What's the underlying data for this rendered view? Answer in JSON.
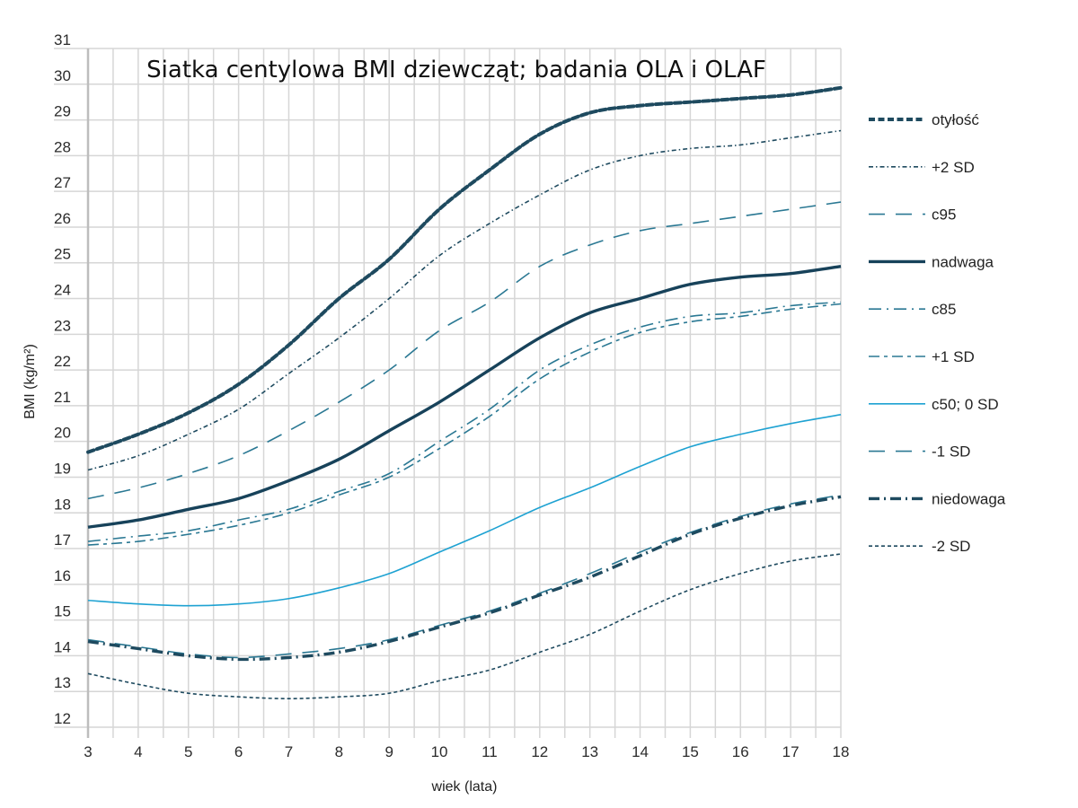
{
  "chart_data": {
    "type": "line",
    "title": "Siatka centylowa BMI dziewcząt; badania OLA i OLAF",
    "xlabel": "wiek (lata)",
    "ylabel": "BMI (kg/m²)",
    "xlim": [
      3,
      18
    ],
    "ylim": [
      12,
      31
    ],
    "grid": true,
    "legend_position": "right",
    "x": [
      3,
      4,
      5,
      6,
      7,
      8,
      9,
      10,
      11,
      12,
      13,
      14,
      15,
      16,
      17,
      18
    ],
    "x_ticks": [
      "3",
      "4",
      "5",
      "6",
      "7",
      "8",
      "9",
      "10",
      "11",
      "12",
      "13",
      "14",
      "15",
      "16",
      "17",
      "18"
    ],
    "y_ticks": [
      "12",
      "13",
      "14",
      "15",
      "16",
      "17",
      "18",
      "19",
      "20",
      "21",
      "22",
      "23",
      "24",
      "25",
      "26",
      "27",
      "28",
      "29",
      "30",
      "31"
    ],
    "series": [
      {
        "name": "otyłość",
        "style": "dashed-thick",
        "color": "#1e4a5f",
        "values": [
          19.7,
          20.2,
          20.8,
          21.6,
          22.7,
          24.0,
          25.1,
          26.5,
          27.6,
          28.6,
          29.2,
          29.4,
          29.5,
          29.6,
          29.7,
          29.9
        ]
      },
      {
        "name": "+2 SD",
        "style": "dash-dot-thin",
        "color": "#1e4a5f",
        "values": [
          19.2,
          19.6,
          20.2,
          20.9,
          21.9,
          22.9,
          24.0,
          25.2,
          26.1,
          26.9,
          27.6,
          28.0,
          28.2,
          28.3,
          28.5,
          28.7
        ]
      },
      {
        "name": "c95",
        "style": "long-dash",
        "color": "#2a7893",
        "values": [
          18.4,
          18.7,
          19.1,
          19.6,
          20.3,
          21.1,
          22.0,
          23.1,
          23.9,
          24.9,
          25.5,
          25.9,
          26.1,
          26.3,
          26.5,
          26.7
        ]
      },
      {
        "name": "nadwaga",
        "style": "solid-thick",
        "color": "#17425a",
        "values": [
          17.6,
          17.8,
          18.1,
          18.4,
          18.9,
          19.5,
          20.3,
          21.1,
          22.0,
          22.9,
          23.6,
          24.0,
          24.4,
          24.6,
          24.7,
          24.9
        ]
      },
      {
        "name": "c85",
        "style": "dash-dot",
        "color": "#2a7893",
        "values": [
          17.2,
          17.35,
          17.5,
          17.8,
          18.1,
          18.6,
          19.1,
          20.0,
          20.9,
          22.0,
          22.7,
          23.2,
          23.5,
          23.6,
          23.8,
          23.9
        ]
      },
      {
        "name": "+1 SD",
        "style": "dash-short-dash",
        "color": "#2a7893",
        "values": [
          17.1,
          17.2,
          17.4,
          17.65,
          18.0,
          18.5,
          19.0,
          19.8,
          20.7,
          21.75,
          22.5,
          23.05,
          23.35,
          23.5,
          23.7,
          23.85
        ]
      },
      {
        "name": "c50; 0 SD",
        "style": "solid-thin",
        "color": "#1ea2d2",
        "values": [
          15.55,
          15.45,
          15.4,
          15.45,
          15.6,
          15.9,
          16.3,
          16.9,
          17.5,
          18.15,
          18.7,
          19.3,
          19.85,
          20.2,
          20.5,
          20.75
        ]
      },
      {
        "name": "-1 SD",
        "style": "long-dash",
        "color": "#2a7893",
        "values": [
          14.45,
          14.25,
          14.05,
          13.95,
          14.05,
          14.2,
          14.45,
          14.85,
          15.25,
          15.75,
          16.3,
          16.9,
          17.45,
          17.9,
          18.25,
          18.5
        ]
      },
      {
        "name": "niedowaga",
        "style": "dash-dot-thick",
        "color": "#1e4a5f",
        "values": [
          14.4,
          14.2,
          14.0,
          13.9,
          13.95,
          14.1,
          14.4,
          14.8,
          15.2,
          15.7,
          16.2,
          16.8,
          17.4,
          17.85,
          18.2,
          18.45
        ]
      },
      {
        "name": "-2 SD",
        "style": "dashed-thin",
        "color": "#1e4a5f",
        "values": [
          13.5,
          13.2,
          12.95,
          12.85,
          12.8,
          12.85,
          12.95,
          13.3,
          13.6,
          14.1,
          14.6,
          15.25,
          15.85,
          16.3,
          16.65,
          16.85
        ]
      }
    ]
  }
}
